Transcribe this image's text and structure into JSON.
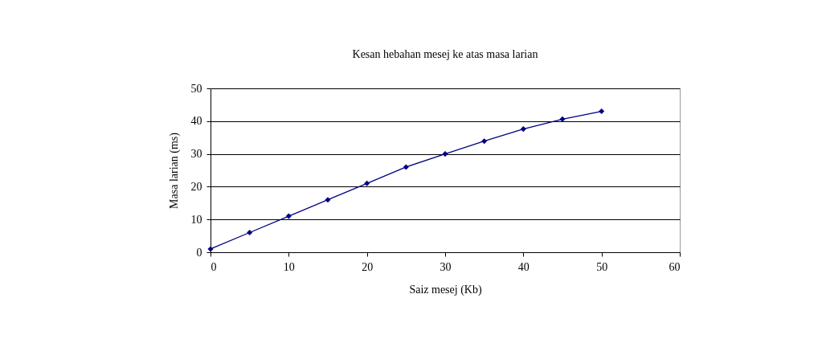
{
  "chart_data": {
    "type": "line",
    "title": "Kesan hebahan mesej ke atas masa larian",
    "xlabel": "Saiz mesej (Kb)",
    "ylabel": "Masa larian (ms)",
    "x": [
      0,
      5,
      10,
      15,
      20,
      25,
      30,
      35,
      40,
      45,
      50
    ],
    "series": [
      {
        "color": "#000080",
        "values": [
          1,
          6,
          11,
          16,
          21,
          26,
          30,
          33.9,
          37.6,
          40.6,
          43
        ]
      }
    ],
    "xlim": [
      0,
      60
    ],
    "xticks": [
      0,
      10,
      20,
      30,
      40,
      50,
      60
    ],
    "ylim": [
      0,
      50
    ],
    "yticks": [
      0,
      10,
      20,
      30,
      40,
      50
    ],
    "grid": "y",
    "marker": "diamond",
    "line_style": "solid",
    "legend": false
  }
}
